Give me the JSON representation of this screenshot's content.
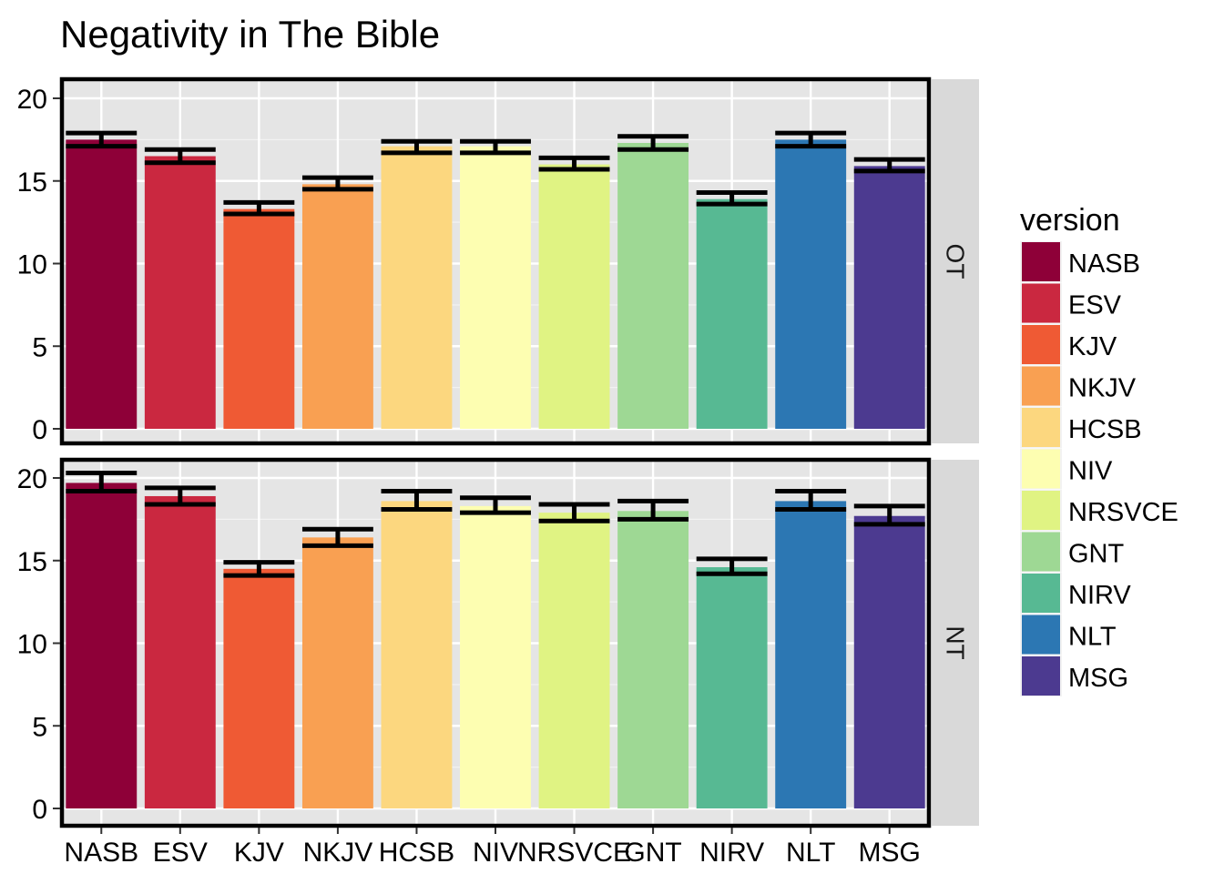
{
  "chart_data": {
    "type": "bar",
    "title": "Negativity in The Bible",
    "xlabel": "",
    "ylabel": "",
    "ylim": [
      0,
      21
    ],
    "yticks": [
      0,
      5,
      10,
      15,
      20
    ],
    "facet_position": "right",
    "legend_position": "right",
    "legend_title": "version",
    "categories": [
      "NASB",
      "ESV",
      "KJV",
      "NKJV",
      "HCSB",
      "NIV",
      "NRSVCE",
      "GNT",
      "NIRV",
      "NLT",
      "MSG"
    ],
    "colors": [
      "#8e0038",
      "#ca2840",
      "#ef5a34",
      "#f9a052",
      "#fcd77f",
      "#fdfeb1",
      "#e0f383",
      "#9ed894",
      "#57b993",
      "#2c77b3",
      "#4c3a90"
    ],
    "panels": [
      {
        "name": "OT",
        "values": [
          17.5,
          16.5,
          13.3,
          14.8,
          17.1,
          17.1,
          16.0,
          17.3,
          13.9,
          17.5,
          15.9
        ],
        "error_low": [
          17.1,
          16.1,
          13.0,
          14.5,
          16.7,
          16.7,
          15.7,
          16.9,
          13.6,
          17.1,
          15.6
        ],
        "error_high": [
          17.9,
          16.9,
          13.7,
          15.2,
          17.4,
          17.4,
          16.4,
          17.7,
          14.3,
          17.9,
          16.3
        ]
      },
      {
        "name": "NT",
        "values": [
          19.7,
          18.9,
          14.5,
          16.4,
          18.6,
          18.3,
          17.9,
          18.0,
          14.6,
          18.6,
          17.7
        ],
        "error_low": [
          19.2,
          18.4,
          14.1,
          15.9,
          18.1,
          17.9,
          17.4,
          17.5,
          14.2,
          18.1,
          17.2
        ],
        "error_high": [
          20.3,
          19.4,
          14.9,
          16.9,
          19.2,
          18.8,
          18.4,
          18.6,
          15.1,
          19.2,
          18.3
        ]
      }
    ]
  }
}
